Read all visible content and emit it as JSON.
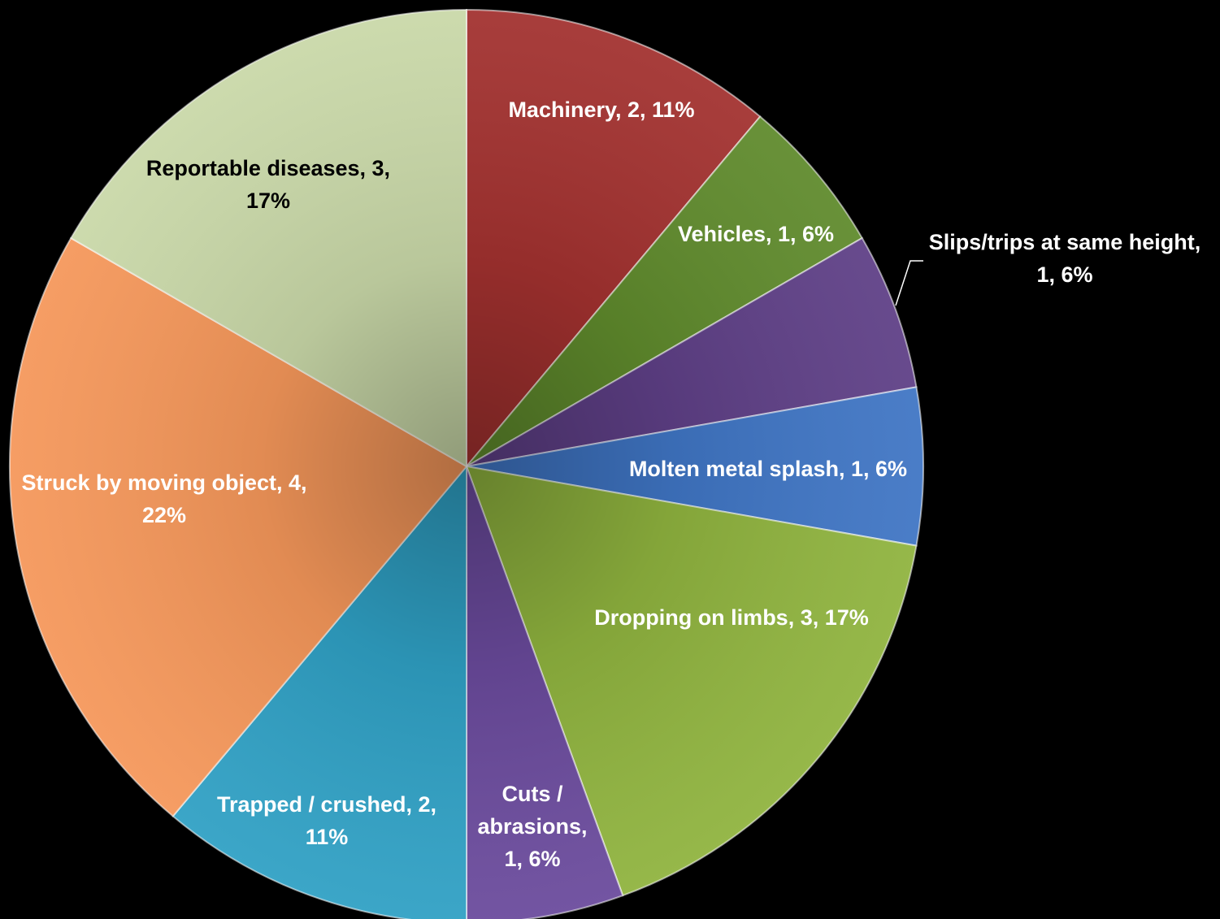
{
  "chart_data": {
    "type": "pie",
    "title": "",
    "slices": [
      {
        "label": "Machinery",
        "value": 2,
        "percent": "11%",
        "color": "#a2312f",
        "label_lines": [
          "Machinery, 2, 11%"
        ],
        "label_color": "#ffffff"
      },
      {
        "label": "Vehicles",
        "value": 1,
        "percent": "6%",
        "color": "#5f8a2c",
        "label_lines": [
          "Vehicles, 1, 6%"
        ],
        "label_color": "#ffffff"
      },
      {
        "label": "Slips/trips at same height",
        "value": 1,
        "percent": "6%",
        "color": "#5e3f86",
        "label_lines": [
          "Slips/trips at same height,",
          "1, 6%"
        ],
        "label_color": "#ffffff"
      },
      {
        "label": "Molten metal splash",
        "value": 1,
        "percent": "6%",
        "color": "#3f75c4",
        "label_lines": [
          "Molten metal splash, 1, 6%"
        ],
        "label_color": "#ffffff"
      },
      {
        "label": "Dropping on limbs",
        "value": 3,
        "percent": "17%",
        "color": "#8fb33e",
        "label_lines": [
          "Dropping on limbs, 3, 17%"
        ],
        "label_color": "#ffffff"
      },
      {
        "label": "Cuts / abrasions",
        "value": 1,
        "percent": "6%",
        "color": "#6a4a9c",
        "label_lines": [
          "Cuts /",
          "abrasions,",
          "1, 6%"
        ],
        "label_color": "#ffffff"
      },
      {
        "label": "Trapped / crushed",
        "value": 2,
        "percent": "11%",
        "color": "#2fa0c4",
        "label_lines": [
          "Trapped / crushed, 2,",
          "11%"
        ],
        "label_color": "#ffffff"
      },
      {
        "label": "Struck by moving object",
        "value": 4,
        "percent": "22%",
        "color": "#f5975a",
        "label_lines": [
          "Struck by moving object, 4,",
          "22%"
        ],
        "label_color": "#ffffff"
      },
      {
        "label": "Reportable diseases",
        "value": 3,
        "percent": "17%",
        "color": "#c9d8a8",
        "label_lines": [
          "Reportable diseases, 3,",
          "17%"
        ],
        "label_color": "#000000"
      }
    ],
    "start_angle": "12 o'clock",
    "direction": "clockwise",
    "legend": "none",
    "background": "#000000"
  }
}
